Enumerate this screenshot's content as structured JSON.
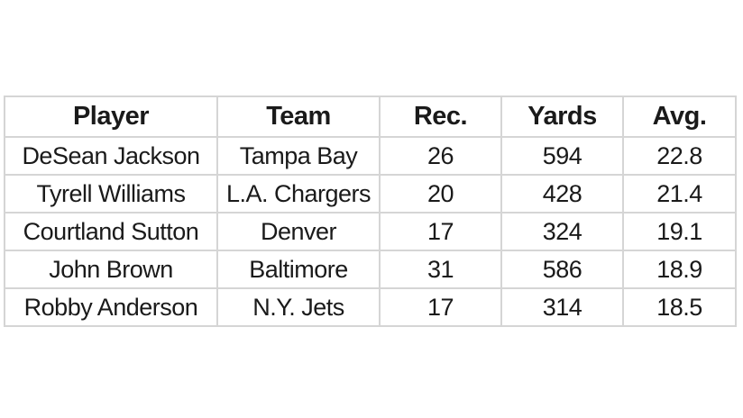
{
  "page": {
    "background_color": "#ffffff"
  },
  "table_style": {
    "border_color": "#d5d5d5",
    "text_color": "#1a1a1a",
    "cell_background": "#ffffff"
  },
  "chart_data": {
    "type": "table",
    "title": "",
    "columns": [
      "Player",
      "Team",
      "Rec.",
      "Yards",
      "Avg."
    ],
    "rows": [
      [
        "DeSean Jackson",
        "Tampa Bay",
        "26",
        "594",
        "22.8"
      ],
      [
        "Tyrell Williams",
        "L.A. Chargers",
        "20",
        "428",
        "21.4"
      ],
      [
        "Courtland Sutton",
        "Denver",
        "17",
        "324",
        "19.1"
      ],
      [
        "John Brown",
        "Baltimore",
        "31",
        "586",
        "18.9"
      ],
      [
        "Robby Anderson",
        "N.Y. Jets",
        "17",
        "314",
        "18.5"
      ]
    ]
  }
}
